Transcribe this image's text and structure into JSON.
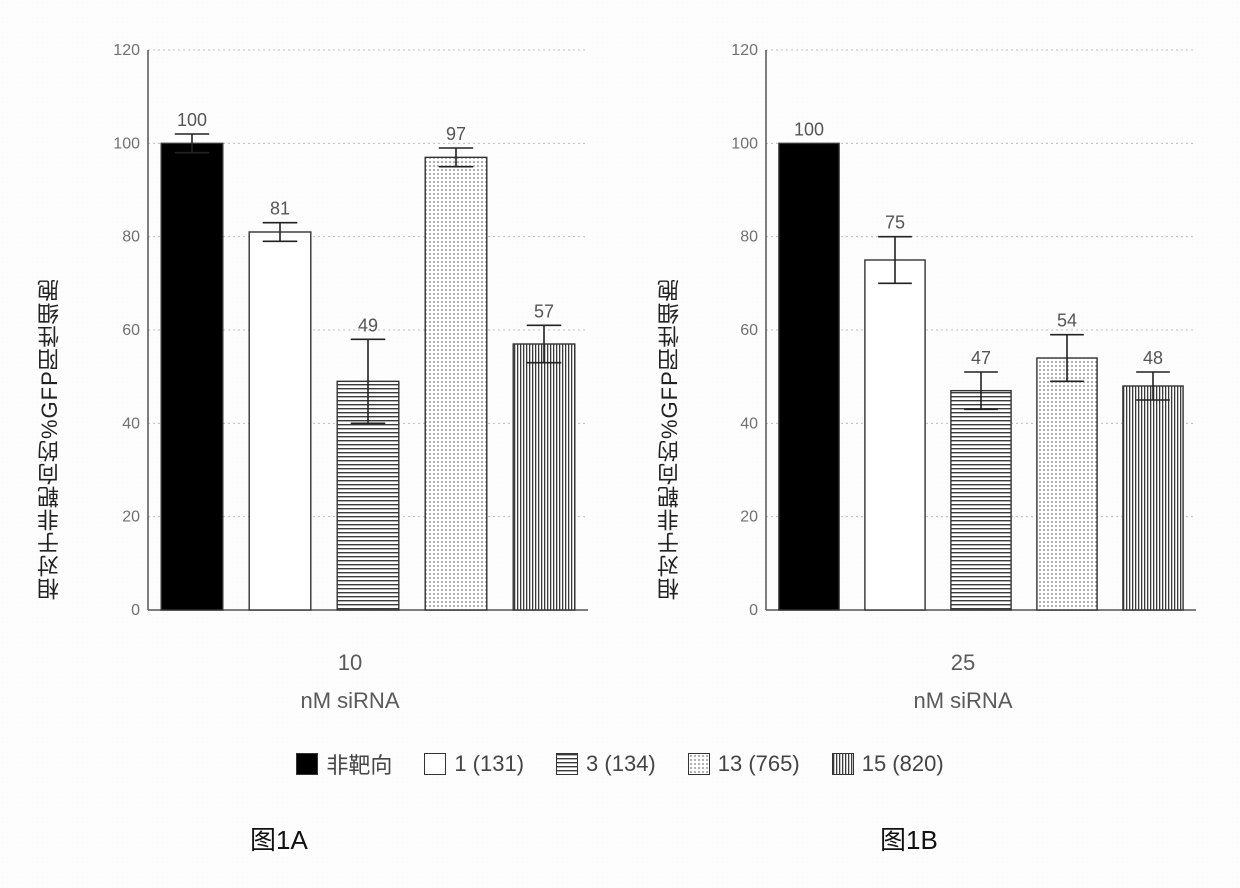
{
  "global": {
    "background": "#ffffff",
    "grid_color": "#bdbdbd",
    "axis_color": "#555555",
    "bar_border": "#333333",
    "label_fontsize": 22,
    "value_fontsize": 18,
    "title_fontsize": 26
  },
  "patterns": {
    "solid_black": {
      "type": "solid",
      "fill": "#000000"
    },
    "white": {
      "type": "solid",
      "fill": "#ffffff"
    },
    "horiz_stripes": {
      "type": "horizontal-stripes",
      "fg": "#3a3a3a",
      "bg": "#ffffff",
      "spacing": 4
    },
    "dots": {
      "type": "dots",
      "fg": "#7a7a7a",
      "bg": "#ffffff",
      "spacing": 4
    },
    "vert_stripes": {
      "type": "vertical-stripes",
      "fg": "#3a3a3a",
      "bg": "#ffffff",
      "spacing": 3
    }
  },
  "legend": {
    "items": [
      {
        "label": "非靶向",
        "pattern": "solid_black"
      },
      {
        "label": "1 (131)",
        "pattern": "white"
      },
      {
        "label": "3 (134)",
        "pattern": "horiz_stripes"
      },
      {
        "label": "13 (765)",
        "pattern": "dots"
      },
      {
        "label": "15 (820)",
        "pattern": "vert_stripes"
      }
    ]
  },
  "chartA": {
    "type": "bar",
    "ylabel": "相对于非靶向的%GFP阳性细胞",
    "xlabel_line1": "10",
    "xlabel_line2": "nM siRNA",
    "figure_caption": "图1A",
    "ylim": [
      0,
      120
    ],
    "ytick_step": 20,
    "bars": [
      {
        "value": 100,
        "err": 2,
        "pattern": "solid_black"
      },
      {
        "value": 81,
        "err": 2,
        "pattern": "white"
      },
      {
        "value": 49,
        "err": 9,
        "pattern": "horiz_stripes"
      },
      {
        "value": 97,
        "err": 2,
        "pattern": "dots"
      },
      {
        "value": 57,
        "err": 4,
        "pattern": "vert_stripes"
      }
    ],
    "bar_width": 0.7
  },
  "chartB": {
    "type": "bar",
    "ylabel": "相对于非靶向的%GFP阳性细胞",
    "xlabel_line1": "25",
    "xlabel_line2": "nM siRNA",
    "figure_caption": "图1B",
    "ylim": [
      0,
      120
    ],
    "ytick_step": 20,
    "bars": [
      {
        "value": 100,
        "err": 0,
        "pattern": "solid_black"
      },
      {
        "value": 75,
        "err": 5,
        "pattern": "white"
      },
      {
        "value": 47,
        "err": 4,
        "pattern": "horiz_stripes"
      },
      {
        "value": 54,
        "err": 5,
        "pattern": "dots"
      },
      {
        "value": 48,
        "err": 3,
        "pattern": "vert_stripes"
      }
    ],
    "bar_width": 0.7
  }
}
